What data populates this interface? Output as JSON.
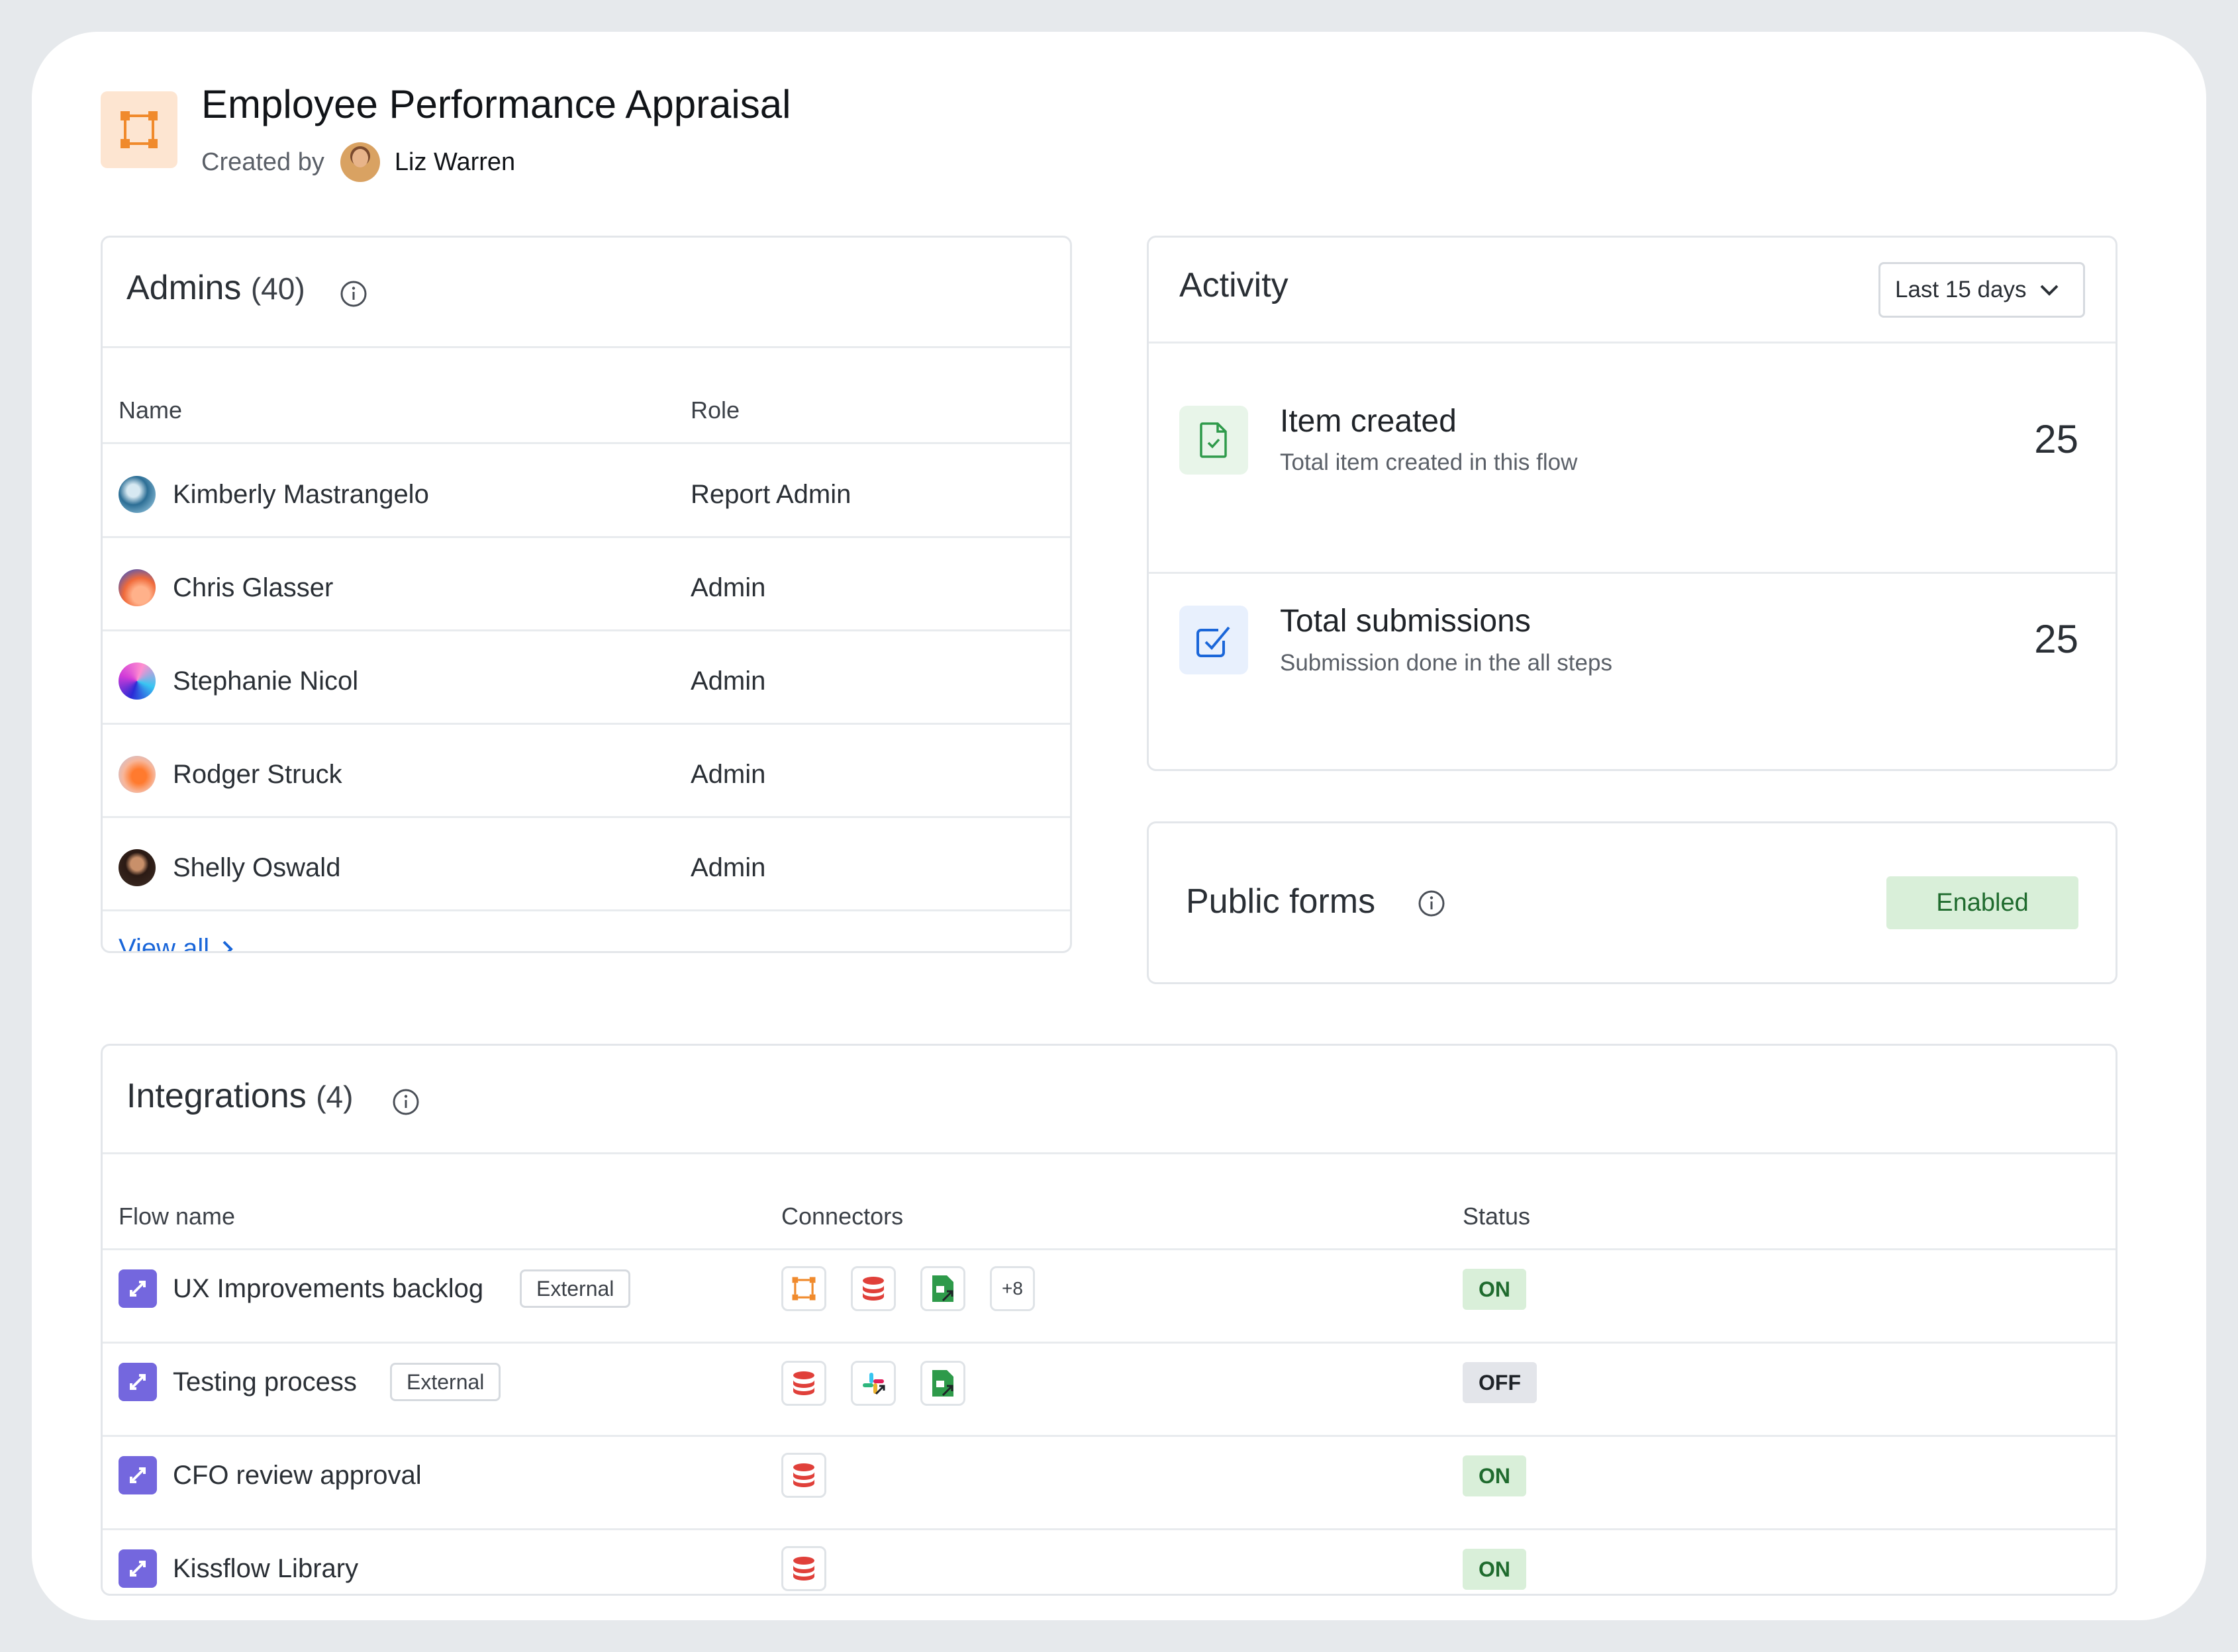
{
  "header": {
    "title": "Employee Performance Appraisal",
    "created_by_label": "Created by",
    "creator_name": "Liz Warren",
    "flow_icon": "flow-nodes-icon"
  },
  "admins": {
    "title": "Admins",
    "count": "(40)",
    "columns": {
      "name": "Name",
      "role": "Role"
    },
    "rows": [
      {
        "name": "Kimberly Mastrangelo",
        "role": "Report Admin"
      },
      {
        "name": "Chris Glasser",
        "role": "Admin"
      },
      {
        "name": "Stephanie Nicol",
        "role": "Admin"
      },
      {
        "name": "Rodger Struck",
        "role": "Admin"
      },
      {
        "name": "Shelly Oswald",
        "role": "Admin"
      }
    ],
    "view_all": "View all"
  },
  "activity": {
    "title": "Activity",
    "range": "Last 15 days",
    "stats": [
      {
        "title": "Item created",
        "subtitle": "Total item created in this flow",
        "value": "25",
        "icon": "document-check-icon"
      },
      {
        "title": "Total submissions",
        "subtitle": "Submission done in the all steps",
        "value": "25",
        "icon": "checkbox-icon"
      }
    ]
  },
  "public_forms": {
    "title": "Public forms",
    "status": "Enabled"
  },
  "integrations": {
    "title": "Integrations",
    "count": "(4)",
    "columns": {
      "flow": "Flow name",
      "connectors": "Connectors",
      "status": "Status"
    },
    "rows": [
      {
        "name": "UX Improvements backlog",
        "badge": "External",
        "connectors": [
          "flow-icon",
          "database-icon",
          "sheets-icon"
        ],
        "more": "+8",
        "status": "ON"
      },
      {
        "name": "Testing process",
        "badge": "External",
        "connectors": [
          "database-icon",
          "slack-icon",
          "sheets-icon"
        ],
        "status": "OFF"
      },
      {
        "name": "CFO review approval",
        "badge": "",
        "connectors": [
          "database-icon"
        ],
        "status": "ON"
      },
      {
        "name": "Kissflow Library",
        "badge": "",
        "connectors": [
          "database-icon"
        ],
        "status": "ON"
      }
    ]
  },
  "colors": {
    "accent_link": "#1a66d9",
    "flow_orange": "#f08a2c",
    "integration_purple": "#7467de",
    "status_on_bg": "#d9efd9",
    "status_off_bg": "#e3e5ea"
  }
}
